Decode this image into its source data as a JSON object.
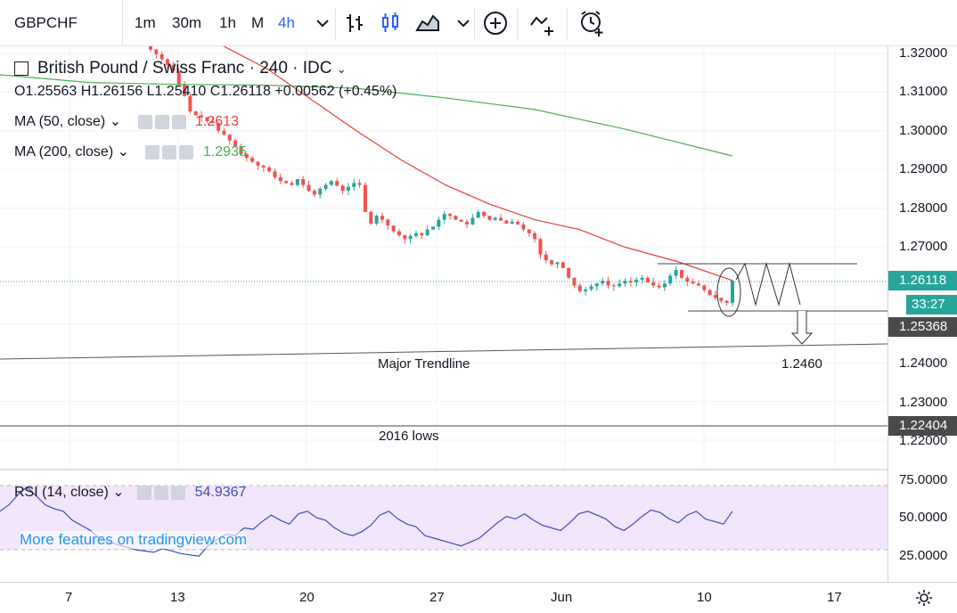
{
  "toolbar": {
    "symbol": "GBPCHF",
    "timeframes": [
      "1m",
      "30m",
      "1h",
      "M",
      "4h"
    ],
    "active_timeframe": "4h",
    "icons": [
      "chevron-down-icon",
      "bar-chart-icon",
      "candles-icon",
      "area-chart-icon",
      "chevron-down-icon",
      "add-indicator-icon",
      "compare-icon",
      "alert-icon"
    ]
  },
  "legend": {
    "title": "British Pound / Swiss Franc · 240 · IDC",
    "ohlc": "O1.25563  H1.26156  L1.25410  C1.26118  +0.00562 (+0.45%)",
    "ma50_label": "MA (50, close)",
    "ma50_value": "1.2613",
    "ma200_label": "MA (200, close)",
    "ma200_value": "1.2935"
  },
  "rsi_legend": {
    "label": "RSI (14, close)",
    "value": "54.9367"
  },
  "price_axis": [
    "1.32000",
    "1.31000",
    "1.30000",
    "1.29000",
    "1.28000",
    "1.27000",
    "1.24000",
    "1.23000",
    "1.22000"
  ],
  "price_tags": {
    "last": "1.26118",
    "countdown": "33:27",
    "support": "1.25368",
    "lows": "1.22404"
  },
  "rsi_axis": [
    "75.0000",
    "50.0000",
    "25.0000"
  ],
  "time_axis": [
    "7",
    "13",
    "20",
    "27",
    "Jun",
    "10",
    "17"
  ],
  "annotations": {
    "trendline": "Major Trendline",
    "target": "1.2460",
    "lows": "2016 lows"
  },
  "watermark": "More features on tradingview.com",
  "colors": {
    "up": "#26a69a",
    "down": "#ef5350",
    "ma50": "#e5403a",
    "ma200": "#4caf50",
    "rsi": "#3a4fb4",
    "rsi_band": "#f3e5fb",
    "accent": "#2962ff",
    "last_tag": "#26a69a",
    "support_tag": "#4a4a4a"
  },
  "chart_data": {
    "type": "candlestick",
    "price_range": [
      1.215,
      1.322
    ],
    "closes": [
      1.3235,
      1.323,
      1.3226,
      1.321,
      1.3198,
      1.3185,
      1.317,
      1.3155,
      1.312,
      1.309,
      1.305,
      1.304,
      1.3035,
      1.3025,
      1.302,
      1.3,
      1.299,
      1.2975,
      1.296,
      1.294,
      1.293,
      1.292,
      1.291,
      1.2905,
      1.2895,
      1.288,
      1.287,
      1.2865,
      1.286,
      1.2875,
      1.286,
      1.2845,
      1.2835,
      1.285,
      1.286,
      1.287,
      1.2858,
      1.2845,
      1.2855,
      1.2865,
      1.286,
      1.279,
      1.276,
      1.278,
      1.277,
      1.2755,
      1.274,
      1.273,
      1.272,
      1.2728,
      1.2735,
      1.273,
      1.2745,
      1.2752,
      1.277,
      1.2785,
      1.278,
      1.277,
      1.2765,
      1.2758,
      1.2775,
      1.279,
      1.278,
      1.277,
      1.2775,
      1.2768,
      1.276,
      1.2765,
      1.2758,
      1.2745,
      1.2735,
      1.272,
      1.268,
      1.2665,
      1.2655,
      1.266,
      1.2645,
      1.262,
      1.26,
      1.2585,
      1.259,
      1.2598,
      1.2605,
      1.2612,
      1.26,
      1.2598,
      1.2605,
      1.2612,
      1.2608,
      1.2615,
      1.262,
      1.2608,
      1.26,
      1.2595,
      1.2605,
      1.2625,
      1.264,
      1.262,
      1.261,
      1.2605,
      1.26,
      1.2588,
      1.2575,
      1.2568,
      1.256,
      1.2555,
      1.2612
    ],
    "ma200": [
      [
        0,
        1.3145
      ],
      [
        100,
        1.3125
      ],
      [
        200,
        1.312
      ],
      [
        300,
        1.3118
      ],
      [
        400,
        1.311
      ],
      [
        500,
        1.3085
      ],
      [
        600,
        1.3055
      ],
      [
        700,
        1.3005
      ],
      [
        822,
        1.2935
      ]
    ],
    "ma50": [
      [
        250,
        1.322
      ],
      [
        300,
        1.316
      ],
      [
        350,
        1.308
      ],
      [
        400,
        1.3
      ],
      [
        450,
        1.2925
      ],
      [
        500,
        1.286
      ],
      [
        550,
        1.281
      ],
      [
        600,
        1.277
      ],
      [
        650,
        1.2745
      ],
      [
        700,
        1.27
      ],
      [
        760,
        1.2662
      ],
      [
        822,
        1.2613
      ]
    ],
    "rsi": [
      55,
      60,
      68,
      74,
      67,
      60,
      57,
      55,
      48,
      44,
      40,
      34,
      31,
      29,
      27,
      25,
      24,
      23,
      26,
      24,
      22,
      21,
      20,
      28,
      33,
      37,
      36,
      42,
      41,
      47,
      52,
      48,
      45,
      53,
      55,
      50,
      48,
      42,
      38,
      36,
      39,
      44,
      52,
      55,
      49,
      45,
      43,
      36,
      34,
      32,
      30,
      28,
      31,
      34,
      40,
      46,
      51,
      49,
      53,
      48,
      44,
      42,
      40,
      46,
      53,
      55,
      52,
      49,
      43,
      40,
      45,
      51,
      56,
      54,
      49,
      46,
      52,
      55,
      49,
      47,
      45,
      55
    ],
    "rsi_range": [
      0,
      100
    ]
  }
}
